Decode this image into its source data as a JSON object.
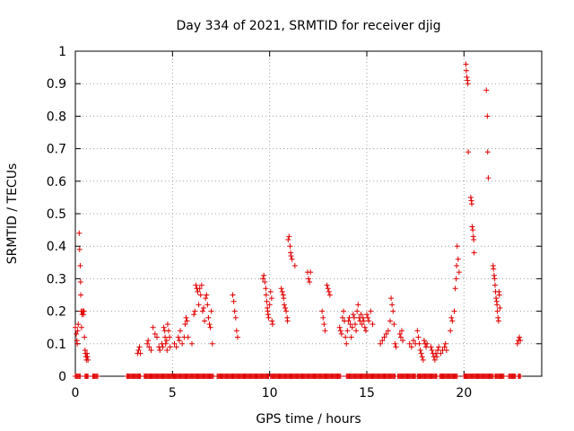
{
  "chart_data": {
    "type": "scatter",
    "title": "Day 334 of 2021, SRMTID for receiver djig",
    "xlabel": "GPS time / hours",
    "ylabel": "SRMTID / TECUs",
    "xlim": [
      0,
      24
    ],
    "ylim": [
      0,
      1
    ],
    "xticks": [
      0,
      5,
      10,
      15,
      20
    ],
    "xtick_labels": [
      "0",
      "5",
      "10",
      "15",
      "20"
    ],
    "yticks": [
      0,
      0.1,
      0.2,
      0.3,
      0.4,
      0.5,
      0.6,
      0.7,
      0.8,
      0.9,
      1
    ],
    "ytick_labels": [
      "0",
      "0.1",
      "0.2",
      "0.3",
      "0.4",
      "0.5",
      "0.6",
      "0.7",
      "0.8",
      "0.9",
      "1"
    ],
    "grid": true,
    "marker": "+",
    "series": [
      {
        "name": "SRMTID",
        "color": "#e00000",
        "points": [
          [
            0.0,
            0.15
          ],
          [
            0.05,
            0.13
          ],
          [
            0.08,
            0.11
          ],
          [
            0.1,
            0.1
          ],
          [
            0.12,
            0.14
          ],
          [
            0.15,
            0.16
          ],
          [
            0.2,
            0.44
          ],
          [
            0.22,
            0.39
          ],
          [
            0.25,
            0.34
          ],
          [
            0.27,
            0.29
          ],
          [
            0.28,
            0.25
          ],
          [
            0.3,
            0.2
          ],
          [
            0.32,
            0.15
          ],
          [
            0.35,
            0.19
          ],
          [
            0.37,
            0.2
          ],
          [
            0.4,
            0.2
          ],
          [
            0.42,
            0.19
          ],
          [
            0.45,
            0.2
          ],
          [
            0.47,
            0.12
          ],
          [
            0.5,
            0.08
          ],
          [
            0.52,
            0.07
          ],
          [
            0.55,
            0.06
          ],
          [
            0.57,
            0.05
          ],
          [
            0.6,
            0.07
          ],
          [
            0.62,
            0.06
          ],
          [
            0.65,
            0.05
          ],
          [
            3.2,
            0.07
          ],
          [
            3.25,
            0.08
          ],
          [
            3.3,
            0.09
          ],
          [
            3.35,
            0.07
          ],
          [
            3.7,
            0.1
          ],
          [
            3.75,
            0.11
          ],
          [
            3.8,
            0.09
          ],
          [
            3.9,
            0.08
          ],
          [
            4.0,
            0.15
          ],
          [
            4.1,
            0.13
          ],
          [
            4.2,
            0.12
          ],
          [
            4.3,
            0.09
          ],
          [
            4.35,
            0.08
          ],
          [
            4.45,
            0.1
          ],
          [
            4.5,
            0.09
          ],
          [
            4.55,
            0.15
          ],
          [
            4.6,
            0.14
          ],
          [
            4.62,
            0.12
          ],
          [
            4.65,
            0.1
          ],
          [
            4.7,
            0.11
          ],
          [
            4.72,
            0.08
          ],
          [
            4.75,
            0.16
          ],
          [
            4.8,
            0.14
          ],
          [
            4.85,
            0.12
          ],
          [
            4.88,
            0.09
          ],
          [
            5.1,
            0.1
          ],
          [
            5.2,
            0.09
          ],
          [
            5.3,
            0.12
          ],
          [
            5.35,
            0.11
          ],
          [
            5.4,
            0.14
          ],
          [
            5.5,
            0.1
          ],
          [
            5.6,
            0.12
          ],
          [
            5.65,
            0.16
          ],
          [
            5.7,
            0.18
          ],
          [
            5.75,
            0.17
          ],
          [
            5.8,
            0.12
          ],
          [
            6.0,
            0.1
          ],
          [
            6.1,
            0.19
          ],
          [
            6.15,
            0.2
          ],
          [
            6.2,
            0.28
          ],
          [
            6.25,
            0.27
          ],
          [
            6.3,
            0.26
          ],
          [
            6.35,
            0.22
          ],
          [
            6.4,
            0.27
          ],
          [
            6.45,
            0.25
          ],
          [
            6.5,
            0.28
          ],
          [
            6.55,
            0.2
          ],
          [
            6.6,
            0.21
          ],
          [
            6.65,
            0.17
          ],
          [
            6.7,
            0.24
          ],
          [
            6.75,
            0.25
          ],
          [
            6.8,
            0.22
          ],
          [
            6.85,
            0.18
          ],
          [
            6.9,
            0.16
          ],
          [
            6.95,
            0.15
          ],
          [
            7.0,
            0.2
          ],
          [
            7.05,
            0.1
          ],
          [
            8.1,
            0.25
          ],
          [
            8.15,
            0.23
          ],
          [
            8.2,
            0.2
          ],
          [
            8.25,
            0.18
          ],
          [
            8.3,
            0.14
          ],
          [
            8.35,
            0.12
          ],
          [
            9.65,
            0.3
          ],
          [
            9.7,
            0.31
          ],
          [
            9.75,
            0.29
          ],
          [
            9.8,
            0.27
          ],
          [
            9.82,
            0.25
          ],
          [
            9.85,
            0.23
          ],
          [
            9.88,
            0.21
          ],
          [
            9.9,
            0.2
          ],
          [
            9.92,
            0.19
          ],
          [
            9.95,
            0.18
          ],
          [
            10.0,
            0.22
          ],
          [
            10.05,
            0.26
          ],
          [
            10.1,
            0.24
          ],
          [
            10.12,
            0.17
          ],
          [
            10.15,
            0.16
          ],
          [
            10.6,
            0.27
          ],
          [
            10.65,
            0.26
          ],
          [
            10.7,
            0.25
          ],
          [
            10.72,
            0.24
          ],
          [
            10.75,
            0.22
          ],
          [
            10.8,
            0.21
          ],
          [
            10.85,
            0.2
          ],
          [
            10.9,
            0.18
          ],
          [
            10.92,
            0.17
          ],
          [
            10.95,
            0.42
          ],
          [
            11.0,
            0.43
          ],
          [
            11.05,
            0.4
          ],
          [
            11.08,
            0.38
          ],
          [
            11.1,
            0.37
          ],
          [
            11.15,
            0.36
          ],
          [
            11.3,
            0.34
          ],
          [
            11.95,
            0.32
          ],
          [
            12.0,
            0.3
          ],
          [
            12.05,
            0.29
          ],
          [
            12.1,
            0.32
          ],
          [
            12.7,
            0.2
          ],
          [
            12.75,
            0.18
          ],
          [
            12.8,
            0.16
          ],
          [
            12.85,
            0.14
          ],
          [
            12.95,
            0.28
          ],
          [
            13.0,
            0.27
          ],
          [
            13.05,
            0.26
          ],
          [
            13.1,
            0.25
          ],
          [
            13.6,
            0.15
          ],
          [
            13.65,
            0.14
          ],
          [
            13.7,
            0.13
          ],
          [
            13.75,
            0.18
          ],
          [
            13.8,
            0.2
          ],
          [
            13.85,
            0.17
          ],
          [
            13.9,
            0.12
          ],
          [
            13.95,
            0.1
          ],
          [
            14.0,
            0.14
          ],
          [
            14.05,
            0.17
          ],
          [
            14.1,
            0.18
          ],
          [
            14.15,
            0.16
          ],
          [
            14.2,
            0.12
          ],
          [
            14.25,
            0.15
          ],
          [
            14.3,
            0.19
          ],
          [
            14.35,
            0.18
          ],
          [
            14.4,
            0.16
          ],
          [
            14.45,
            0.14
          ],
          [
            14.5,
            0.2
          ],
          [
            14.55,
            0.22
          ],
          [
            14.6,
            0.18
          ],
          [
            14.65,
            0.17
          ],
          [
            14.7,
            0.19
          ],
          [
            14.75,
            0.16
          ],
          [
            14.8,
            0.18
          ],
          [
            14.85,
            0.17
          ],
          [
            14.9,
            0.15
          ],
          [
            14.95,
            0.14
          ],
          [
            15.0,
            0.19
          ],
          [
            15.05,
            0.18
          ],
          [
            15.1,
            0.17
          ],
          [
            15.2,
            0.2
          ],
          [
            15.3,
            0.16
          ],
          [
            15.7,
            0.1
          ],
          [
            15.8,
            0.11
          ],
          [
            15.9,
            0.12
          ],
          [
            16.0,
            0.13
          ],
          [
            16.1,
            0.14
          ],
          [
            16.2,
            0.17
          ],
          [
            16.25,
            0.24
          ],
          [
            16.3,
            0.22
          ],
          [
            16.35,
            0.2
          ],
          [
            16.4,
            0.16
          ],
          [
            16.45,
            0.1
          ],
          [
            16.5,
            0.09
          ],
          [
            16.7,
            0.13
          ],
          [
            16.75,
            0.12
          ],
          [
            16.8,
            0.14
          ],
          [
            16.85,
            0.11
          ],
          [
            17.2,
            0.1
          ],
          [
            17.3,
            0.09
          ],
          [
            17.4,
            0.11
          ],
          [
            17.5,
            0.1
          ],
          [
            17.6,
            0.14
          ],
          [
            17.65,
            0.12
          ],
          [
            17.7,
            0.1
          ],
          [
            17.75,
            0.08
          ],
          [
            17.8,
            0.07
          ],
          [
            17.85,
            0.06
          ],
          [
            17.9,
            0.05
          ],
          [
            17.95,
            0.11
          ],
          [
            18.0,
            0.1
          ],
          [
            18.05,
            0.09
          ],
          [
            18.1,
            0.1
          ],
          [
            18.3,
            0.09
          ],
          [
            18.35,
            0.08
          ],
          [
            18.4,
            0.07
          ],
          [
            18.45,
            0.06
          ],
          [
            18.5,
            0.05
          ],
          [
            18.55,
            0.07
          ],
          [
            18.6,
            0.06
          ],
          [
            18.65,
            0.08
          ],
          [
            18.7,
            0.09
          ],
          [
            18.8,
            0.07
          ],
          [
            18.9,
            0.08
          ],
          [
            19.0,
            0.09
          ],
          [
            19.05,
            0.1
          ],
          [
            19.1,
            0.08
          ],
          [
            19.3,
            0.14
          ],
          [
            19.35,
            0.18
          ],
          [
            19.4,
            0.17
          ],
          [
            19.5,
            0.2
          ],
          [
            19.55,
            0.27
          ],
          [
            19.6,
            0.3
          ],
          [
            19.62,
            0.34
          ],
          [
            19.65,
            0.4
          ],
          [
            19.7,
            0.36
          ],
          [
            19.75,
            0.32
          ],
          [
            20.1,
            0.96
          ],
          [
            20.12,
            0.94
          ],
          [
            20.15,
            0.92
          ],
          [
            20.18,
            0.91
          ],
          [
            20.2,
            0.9
          ],
          [
            20.22,
            0.69
          ],
          [
            20.35,
            0.55
          ],
          [
            20.38,
            0.54
          ],
          [
            20.4,
            0.53
          ],
          [
            20.42,
            0.46
          ],
          [
            20.45,
            0.45
          ],
          [
            20.48,
            0.43
          ],
          [
            20.5,
            0.42
          ],
          [
            20.52,
            0.38
          ],
          [
            21.15,
            0.88
          ],
          [
            21.2,
            0.8
          ],
          [
            21.22,
            0.69
          ],
          [
            21.25,
            0.61
          ],
          [
            21.5,
            0.34
          ],
          [
            21.52,
            0.33
          ],
          [
            21.55,
            0.31
          ],
          [
            21.58,
            0.3
          ],
          [
            21.6,
            0.28
          ],
          [
            21.62,
            0.26
          ],
          [
            21.65,
            0.24
          ],
          [
            21.68,
            0.23
          ],
          [
            21.7,
            0.22
          ],
          [
            21.72,
            0.2
          ],
          [
            21.75,
            0.18
          ],
          [
            21.78,
            0.17
          ],
          [
            21.8,
            0.26
          ],
          [
            21.82,
            0.25
          ],
          [
            21.85,
            0.21
          ],
          [
            22.75,
            0.1
          ],
          [
            22.8,
            0.11
          ],
          [
            22.85,
            0.12
          ],
          [
            22.9,
            0.11
          ]
        ],
        "zero_ranges": [
          [
            0.0,
            0.25
          ],
          [
            0.5,
            0.65
          ],
          [
            0.9,
            1.15
          ],
          [
            2.65,
            3.35
          ],
          [
            3.55,
            7.1
          ],
          [
            7.3,
            9.95
          ],
          [
            10.05,
            13.65
          ],
          [
            13.95,
            16.45
          ],
          [
            16.6,
            17.5
          ],
          [
            17.6,
            18.6
          ],
          [
            18.75,
            19.65
          ],
          [
            20.0,
            21.5
          ],
          [
            21.6,
            22.05
          ],
          [
            22.3,
            22.65
          ],
          [
            22.8,
            22.9
          ]
        ]
      }
    ]
  }
}
